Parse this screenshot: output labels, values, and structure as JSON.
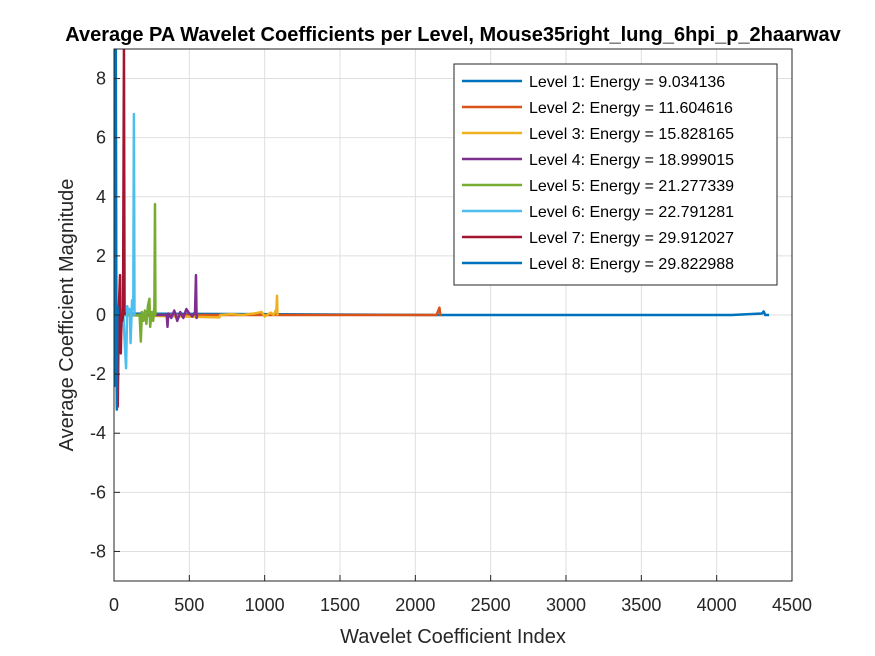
{
  "chart_data": {
    "type": "line",
    "title": "Average PA Wavelet Coefficients per Level, Mouse35right_lung_6hpi_p_2haarwav",
    "xlabel": "Wavelet Coefficient Index",
    "ylabel": "Average Coefficient Magnitude",
    "xlim": [
      0,
      4500
    ],
    "ylim": [
      -9,
      9
    ],
    "xticks": [
      0,
      500,
      1000,
      1500,
      2000,
      2500,
      3000,
      3500,
      4000,
      4500
    ],
    "yticks": [
      -8,
      -6,
      -4,
      -2,
      0,
      2,
      4,
      6,
      8
    ],
    "grid": true,
    "legend_location": "top-right",
    "series": [
      {
        "name": "Level 1: Energy = 9.034136",
        "color": "#0072BD",
        "points": [
          [
            1,
            0.05
          ],
          [
            2180,
            0.0
          ],
          [
            2600,
            0.0
          ],
          [
            3100,
            0.0
          ],
          [
            3600,
            0.0
          ],
          [
            4100,
            0.0
          ],
          [
            4300,
            0.05
          ],
          [
            4312,
            0.12
          ],
          [
            4322,
            0.0
          ],
          [
            4348,
            0.0
          ]
        ]
      },
      {
        "name": "Level 2: Energy = 11.604616",
        "color": "#D95319",
        "points": [
          [
            1,
            0.0
          ],
          [
            1200,
            0.0
          ],
          [
            1800,
            0.0
          ],
          [
            2140,
            0.0
          ],
          [
            2150,
            0.12
          ],
          [
            2160,
            0.25
          ],
          [
            2166,
            0.0
          ],
          [
            2174,
            0.0
          ]
        ]
      },
      {
        "name": "Level 3: Energy = 15.828165",
        "color": "#EDB120",
        "points": [
          [
            1,
            0.0
          ],
          [
            700,
            -0.08
          ],
          [
            705,
            0.0
          ],
          [
            780,
            0.03
          ],
          [
            850,
            0.0
          ],
          [
            930,
            0.05
          ],
          [
            980,
            0.1
          ],
          [
            1000,
            -0.05
          ],
          [
            1040,
            0.08
          ],
          [
            1060,
            0.0
          ],
          [
            1078,
            0.2
          ],
          [
            1082,
            0.65
          ],
          [
            1085,
            0.0
          ],
          [
            1087,
            0.0
          ]
        ]
      },
      {
        "name": "Level 4: Energy = 18.999015",
        "color": "#7E2F8E",
        "points": [
          [
            1,
            0.0
          ],
          [
            350,
            0.0
          ],
          [
            355,
            -0.4
          ],
          [
            360,
            0.05
          ],
          [
            380,
            -0.1
          ],
          [
            400,
            0.15
          ],
          [
            420,
            -0.2
          ],
          [
            440,
            0.1
          ],
          [
            460,
            -0.1
          ],
          [
            480,
            0.2
          ],
          [
            500,
            0.05
          ],
          [
            520,
            -0.05
          ],
          [
            538,
            0.1
          ],
          [
            544,
            1.35
          ],
          [
            548,
            -0.1
          ],
          [
            552,
            0.0
          ]
        ]
      },
      {
        "name": "Level 5: Energy = 21.277339",
        "color": "#77AC30",
        "points": [
          [
            1,
            0.0
          ],
          [
            170,
            0.0
          ],
          [
            178,
            -0.9
          ],
          [
            185,
            0.1
          ],
          [
            195,
            -0.2
          ],
          [
            205,
            0.15
          ],
          [
            215,
            -0.3
          ],
          [
            225,
            0.3
          ],
          [
            235,
            0.55
          ],
          [
            240,
            -0.4
          ],
          [
            250,
            0.1
          ],
          [
            260,
            -0.2
          ],
          [
            268,
            0.3
          ],
          [
            272,
            3.75
          ],
          [
            275,
            0.0
          ],
          [
            279,
            0.0
          ]
        ]
      },
      {
        "name": "Level 6: Energy = 22.791281",
        "color": "#4DBEEE",
        "points": [
          [
            1,
            0.0
          ],
          [
            40,
            0.0
          ],
          [
            50,
            -0.3
          ],
          [
            60,
            0.2
          ],
          [
            70,
            -0.8
          ],
          [
            80,
            -1.8
          ],
          [
            88,
            0.3
          ],
          [
            95,
            0.1
          ],
          [
            105,
            0.2
          ],
          [
            110,
            -0.95
          ],
          [
            115,
            -0.2
          ],
          [
            120,
            0.5
          ],
          [
            128,
            0.2
          ],
          [
            132,
            6.8
          ],
          [
            136,
            0.0
          ],
          [
            140,
            0.0
          ]
        ]
      },
      {
        "name": "Level 7: Energy = 29.912027",
        "color": "#A2142F",
        "points": [
          [
            1,
            0.0
          ],
          [
            15,
            -0.5
          ],
          [
            25,
            -3.1
          ],
          [
            32,
            0.2
          ],
          [
            40,
            1.35
          ],
          [
            45,
            -1.3
          ],
          [
            50,
            0.0
          ],
          [
            55,
            -0.2
          ],
          [
            60,
            0.0
          ],
          [
            66,
            9.0
          ],
          [
            70,
            0.0
          ]
        ]
      },
      {
        "name": "Level 8: Energy = 29.822988",
        "color": "#0072BD",
        "points": [
          [
            1,
            9.0
          ],
          [
            3,
            -2.4
          ],
          [
            5,
            0.0
          ],
          [
            8,
            0.0
          ],
          [
            12,
            9.0
          ],
          [
            16,
            -1.0
          ],
          [
            19,
            -3.2
          ],
          [
            22,
            0.3
          ],
          [
            26,
            0.0
          ],
          [
            30,
            0.0
          ],
          [
            34,
            0.0
          ]
        ]
      }
    ]
  }
}
